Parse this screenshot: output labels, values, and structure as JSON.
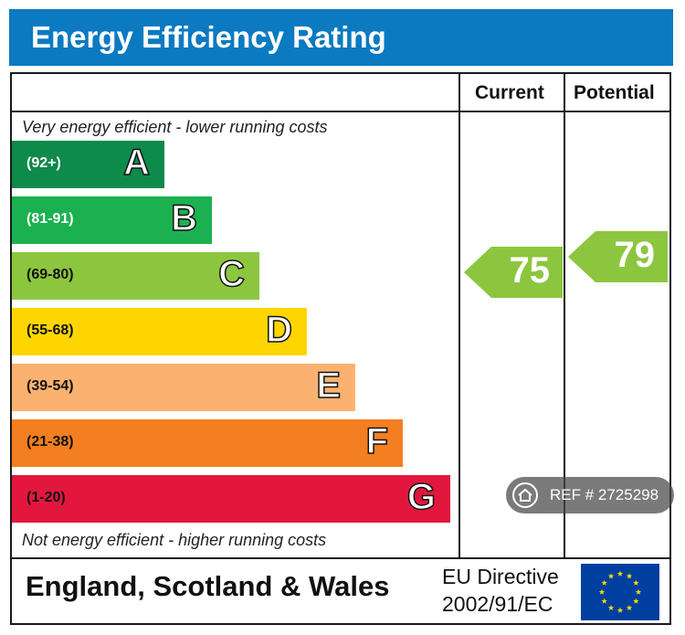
{
  "header": {
    "title": "Energy Efficiency Rating"
  },
  "columns": {
    "current": "Current",
    "potential": "Potential"
  },
  "captions": {
    "top": "Very energy efficient - lower running costs",
    "bottom": "Not energy efficient - higher running costs"
  },
  "chart_data": {
    "type": "bar",
    "title": "Energy Efficiency Rating",
    "bands": [
      {
        "letter": "A",
        "range": "(92+)",
        "color": "#0e8a4a",
        "range_color": "#ffffff"
      },
      {
        "letter": "B",
        "range": "(81-91)",
        "color": "#1bb150",
        "range_color": "#ffffff"
      },
      {
        "letter": "C",
        "range": "(69-80)",
        "color": "#8cc63f",
        "range_color": "#111111"
      },
      {
        "letter": "D",
        "range": "(55-68)",
        "color": "#ffd500",
        "range_color": "#111111"
      },
      {
        "letter": "E",
        "range": "(39-54)",
        "color": "#fbb271",
        "range_color": "#111111"
      },
      {
        "letter": "F",
        "range": "(21-38)",
        "color": "#f37f21",
        "range_color": "#111111"
      },
      {
        "letter": "G",
        "range": "(1-20)",
        "color": "#e3173e",
        "range_color": "#111111"
      }
    ],
    "current": {
      "value": 75,
      "band": "C",
      "color": "#8cc63f"
    },
    "potential": {
      "value": 79,
      "band": "C",
      "color": "#8cc63f"
    }
  },
  "footer": {
    "region": "England, Scotland & Wales",
    "directive_line1": "EU Directive",
    "directive_line2": "2002/91/EC",
    "flag_color": "#003fa0",
    "star_color": "#ffdd00"
  },
  "watermark": {
    "text": "REF # 2725298",
    "icon": "home-icon"
  }
}
